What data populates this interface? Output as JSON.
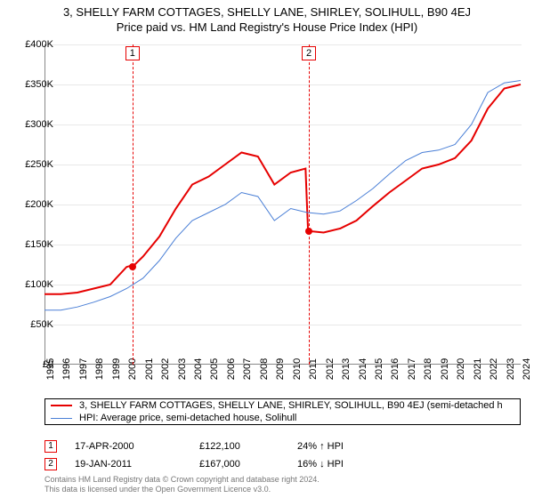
{
  "title": "3, SHELLY FARM COTTAGES, SHELLY LANE, SHIRLEY, SOLIHULL, B90 4EJ",
  "subtitle": "Price paid vs. HM Land Registry's House Price Index (HPI)",
  "chart": {
    "type": "line",
    "background_color": "#ffffff",
    "grid_color": "#e8e8e8",
    "axis_color": "#888888",
    "ylim": [
      0,
      400000
    ],
    "ytick_step": 50000,
    "ytick_labels": [
      "£0",
      "£50K",
      "£100K",
      "£150K",
      "£200K",
      "£250K",
      "£300K",
      "£350K",
      "£400K"
    ],
    "xlim": [
      1995,
      2024
    ],
    "xtick_labels": [
      "1995",
      "1996",
      "1997",
      "1998",
      "1999",
      "2000",
      "2001",
      "2002",
      "2003",
      "2004",
      "2005",
      "2006",
      "2007",
      "2008",
      "2009",
      "2010",
      "2011",
      "2012",
      "2013",
      "2014",
      "2015",
      "2016",
      "2017",
      "2018",
      "2019",
      "2020",
      "2021",
      "2022",
      "2023",
      "2024"
    ],
    "series": [
      {
        "name": "price_paid",
        "color": "#e60000",
        "line_width": 2,
        "points": [
          [
            1995,
            88000
          ],
          [
            1996,
            88000
          ],
          [
            1997,
            90000
          ],
          [
            1998,
            95000
          ],
          [
            1999,
            100000
          ],
          [
            2000,
            122000
          ],
          [
            2000.5,
            125000
          ],
          [
            2001,
            135000
          ],
          [
            2002,
            160000
          ],
          [
            2003,
            195000
          ],
          [
            2004,
            225000
          ],
          [
            2005,
            235000
          ],
          [
            2006,
            250000
          ],
          [
            2007,
            265000
          ],
          [
            2008,
            260000
          ],
          [
            2009,
            225000
          ],
          [
            2010,
            240000
          ],
          [
            2010.9,
            245000
          ],
          [
            2011.05,
            167000
          ],
          [
            2012,
            165000
          ],
          [
            2013,
            170000
          ],
          [
            2014,
            180000
          ],
          [
            2015,
            198000
          ],
          [
            2016,
            215000
          ],
          [
            2017,
            230000
          ],
          [
            2018,
            245000
          ],
          [
            2019,
            250000
          ],
          [
            2020,
            258000
          ],
          [
            2021,
            280000
          ],
          [
            2022,
            320000
          ],
          [
            2023,
            345000
          ],
          [
            2024,
            350000
          ]
        ]
      },
      {
        "name": "hpi",
        "color": "#4a7fd6",
        "line_width": 1,
        "points": [
          [
            1995,
            68000
          ],
          [
            1996,
            68000
          ],
          [
            1997,
            72000
          ],
          [
            1998,
            78000
          ],
          [
            1999,
            85000
          ],
          [
            2000,
            95000
          ],
          [
            2001,
            108000
          ],
          [
            2002,
            130000
          ],
          [
            2003,
            158000
          ],
          [
            2004,
            180000
          ],
          [
            2005,
            190000
          ],
          [
            2006,
            200000
          ],
          [
            2007,
            215000
          ],
          [
            2008,
            210000
          ],
          [
            2009,
            180000
          ],
          [
            2010,
            195000
          ],
          [
            2011,
            190000
          ],
          [
            2012,
            188000
          ],
          [
            2013,
            192000
          ],
          [
            2014,
            205000
          ],
          [
            2015,
            220000
          ],
          [
            2016,
            238000
          ],
          [
            2017,
            255000
          ],
          [
            2018,
            265000
          ],
          [
            2019,
            268000
          ],
          [
            2020,
            275000
          ],
          [
            2021,
            300000
          ],
          [
            2022,
            340000
          ],
          [
            2023,
            352000
          ],
          [
            2024,
            355000
          ]
        ]
      }
    ],
    "event_markers": [
      {
        "n": "1",
        "x": 2000.3,
        "y": 122100,
        "color": "#e60000"
      },
      {
        "n": "2",
        "x": 2011.05,
        "y": 167000,
        "color": "#e60000"
      }
    ]
  },
  "legend": {
    "items": [
      {
        "color": "#e60000",
        "width": 2,
        "label": "3, SHELLY FARM COTTAGES, SHELLY LANE, SHIRLEY, SOLIHULL, B90 4EJ (semi-detached h"
      },
      {
        "color": "#4a7fd6",
        "width": 1,
        "label": "HPI: Average price, semi-detached house, Solihull"
      }
    ]
  },
  "events": [
    {
      "n": "1",
      "color": "#e60000",
      "date": "17-APR-2000",
      "price": "£122,100",
      "pct": "24% ↑ HPI"
    },
    {
      "n": "2",
      "color": "#e60000",
      "date": "19-JAN-2011",
      "price": "£167,000",
      "pct": "16% ↓ HPI"
    }
  ],
  "attribution": {
    "line1": "Contains HM Land Registry data © Crown copyright and database right 2024.",
    "line2": "This data is licensed under the Open Government Licence v3.0."
  },
  "fonts": {
    "title_size": 13,
    "tick_size": 11,
    "legend_size": 11,
    "attribution_size": 9,
    "attribution_color": "#777777"
  }
}
